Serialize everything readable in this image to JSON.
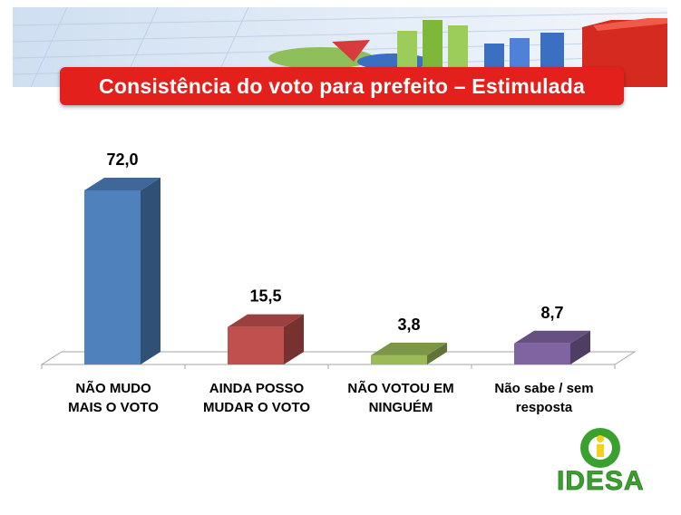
{
  "title": "Consistência do voto para prefeito – Estimulada",
  "logo_text": "IDESA",
  "colors": {
    "title_bg": "#e3201b",
    "logo_green": "#3aa12f",
    "logo_yellow": "#f2d21c"
  },
  "chart_data": {
    "type": "bar",
    "categories": [
      "NÃO MUDO\nMAIS O VOTO",
      "AINDA POSSO\nMUDAR O VOTO",
      "NÃO VOTOU EM\nNINGUÉM",
      "Não sabe / sem\nresposta"
    ],
    "values": [
      72.0,
      15.5,
      3.8,
      8.7
    ],
    "value_labels": [
      "72,0",
      "15,5",
      "3,8",
      "8,7"
    ],
    "bar_colors": [
      "#4f81bd",
      "#c0504d",
      "#9bbb59",
      "#8064a2"
    ],
    "ylim": [
      0,
      75
    ],
    "grid": false,
    "legend": "none",
    "style": "3d"
  }
}
